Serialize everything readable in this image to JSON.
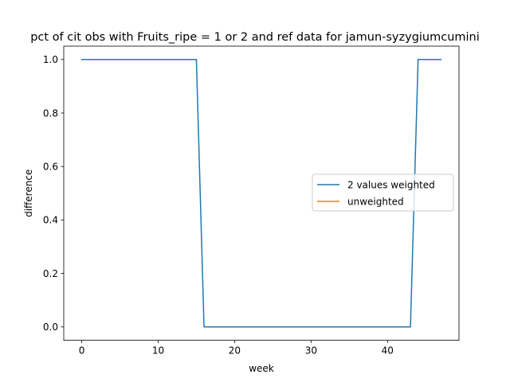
{
  "chart_data": {
    "type": "line",
    "title": "pct of cit obs with Fruits_ripe = 1 or 2 and ref data for jamun-syzygiumcumini",
    "xlabel": "week",
    "ylabel": "difference",
    "xlim": [
      -2.35,
      49.35
    ],
    "ylim": [
      -0.05,
      1.05
    ],
    "xticks": [
      0,
      10,
      20,
      30,
      40
    ],
    "yticks": [
      0.0,
      0.2,
      0.4,
      0.6,
      0.8,
      1.0
    ],
    "xtick_labels": [
      "0",
      "10",
      "20",
      "30",
      "40"
    ],
    "ytick_labels": [
      "0.0",
      "0.2",
      "0.4",
      "0.6",
      "0.8",
      "1.0"
    ],
    "legend_position": "center-right",
    "grid": false,
    "series": [
      {
        "name": "2 values weighted",
        "color": "#1f77b4",
        "x": [
          0,
          1,
          2,
          3,
          4,
          5,
          6,
          7,
          8,
          9,
          10,
          11,
          12,
          13,
          14,
          15,
          16,
          17,
          18,
          19,
          20,
          21,
          22,
          23,
          24,
          25,
          26,
          27,
          28,
          29,
          30,
          31,
          32,
          33,
          34,
          35,
          36,
          37,
          38,
          39,
          40,
          41,
          42,
          43,
          44,
          45,
          46,
          47
        ],
        "values": [
          1,
          1,
          1,
          1,
          1,
          1,
          1,
          1,
          1,
          1,
          1,
          1,
          1,
          1,
          1,
          1,
          0,
          0,
          0,
          0,
          0,
          0,
          0,
          0,
          0,
          0,
          0,
          0,
          0,
          0,
          0,
          0,
          0,
          0,
          0,
          0,
          0,
          0,
          0,
          0,
          0,
          0,
          0,
          0,
          1,
          1,
          1,
          1
        ]
      },
      {
        "name": "unweighted",
        "color": "#ff7f0e",
        "x": [],
        "values": []
      }
    ]
  }
}
